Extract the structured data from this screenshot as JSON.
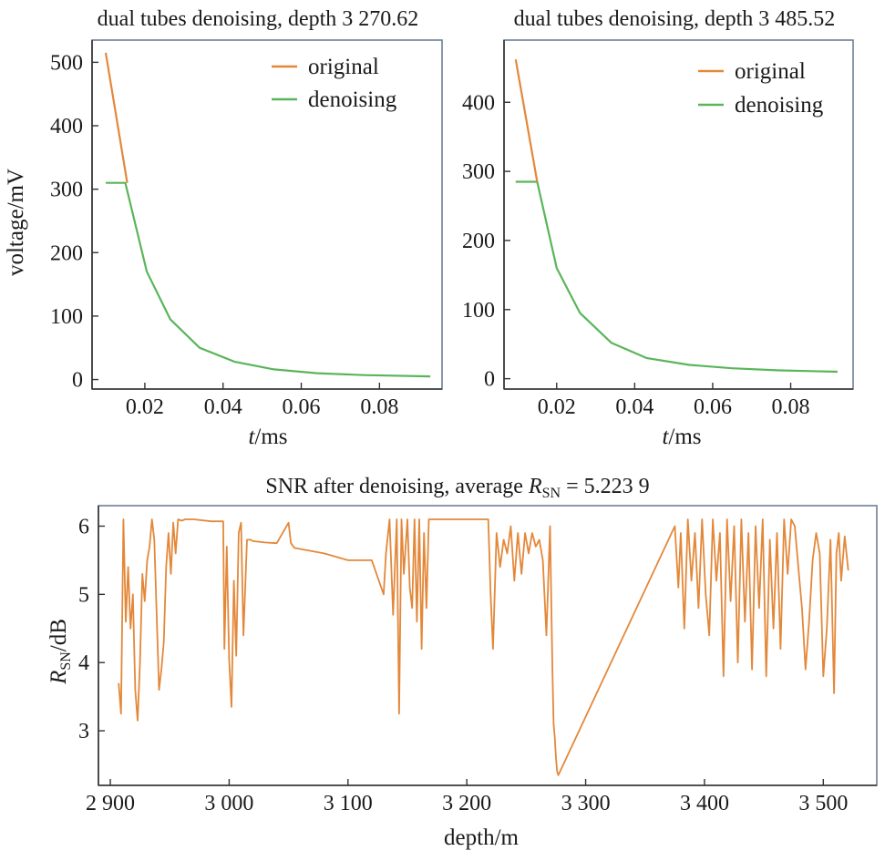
{
  "colors": {
    "original": "#e3883a",
    "denoising": "#5ab55a",
    "frame": "#6d7f96",
    "axis": "#333333"
  },
  "chart_data": [
    {
      "type": "line",
      "title": "dual tubes denoising, depth 3 270.62",
      "xlabel_italic": "t",
      "xlabel_rest": "/ms",
      "ylabel": "voltage/mV",
      "xlim": [
        0.0065,
        0.096
      ],
      "ylim": [
        -15,
        535
      ],
      "xticks": [
        0.02,
        0.04,
        0.06,
        0.08
      ],
      "xtick_labels": [
        "0.02",
        "0.04",
        "0.06",
        "0.08"
      ],
      "yticks": [
        0,
        100,
        200,
        300,
        400,
        500
      ],
      "ytick_labels": [
        "0",
        "100",
        "200",
        "300",
        "400",
        "500"
      ],
      "legend": [
        "original",
        "denoising"
      ],
      "series": [
        {
          "name": "original",
          "x": [
            0.01,
            0.0155
          ],
          "y": [
            515,
            310
          ]
        },
        {
          "name": "denoising",
          "x": [
            0.01,
            0.015,
            0.0205,
            0.0265,
            0.034,
            0.043,
            0.053,
            0.064,
            0.076,
            0.093
          ],
          "y": [
            310,
            310,
            170,
            95,
            50,
            28,
            16,
            10,
            7,
            5
          ]
        }
      ]
    },
    {
      "type": "line",
      "title": "dual tubes denoising, depth 3 485.52",
      "xlabel_italic": "t",
      "xlabel_rest": "/ms",
      "ylabel": "",
      "xlim": [
        0.0065,
        0.096
      ],
      "ylim": [
        -15,
        490
      ],
      "xticks": [
        0.02,
        0.04,
        0.06,
        0.08
      ],
      "xtick_labels": [
        "0.02",
        "0.04",
        "0.06",
        "0.08"
      ],
      "yticks": [
        0,
        100,
        200,
        300,
        400
      ],
      "ytick_labels": [
        "0",
        "100",
        "200",
        "300",
        "400"
      ],
      "legend": [
        "original",
        "denoising"
      ],
      "series": [
        {
          "name": "original",
          "x": [
            0.0095,
            0.015
          ],
          "y": [
            462,
            285
          ]
        },
        {
          "name": "denoising",
          "x": [
            0.0095,
            0.015,
            0.02,
            0.026,
            0.034,
            0.043,
            0.054,
            0.065,
            0.077,
            0.092
          ],
          "y": [
            285,
            285,
            160,
            95,
            52,
            30,
            20,
            15,
            12,
            10
          ]
        }
      ]
    },
    {
      "type": "line",
      "title_prefix": "SNR after denoising, average ",
      "title_var": "R",
      "title_sub": "SN",
      "title_suffix": " = 5.223 9",
      "xlabel": "depth/m",
      "ylabel_var": "R",
      "ylabel_sub": "SN",
      "ylabel_rest": "/dB",
      "xlim": [
        2890,
        3545
      ],
      "ylim": [
        2.2,
        6.3
      ],
      "xticks": [
        2900,
        3000,
        3100,
        3200,
        3300,
        3400,
        3500
      ],
      "xtick_labels": [
        "2 900",
        "3 000",
        "3 100",
        "3 200",
        "3 300",
        "3 400",
        "3 500"
      ],
      "yticks": [
        3,
        4,
        5,
        6
      ],
      "ytick_labels": [
        "3",
        "4",
        "5",
        "6"
      ],
      "series": [
        {
          "name": "",
          "x": [
            2907,
            2909,
            2911,
            2913,
            2915,
            2917,
            2919,
            2921,
            2923,
            2925,
            2927,
            2929,
            2931,
            2933,
            2935,
            2937,
            2939,
            2941,
            2943,
            2945,
            2947,
            2949,
            2951,
            2953,
            2955,
            2957,
            2960,
            2963,
            2970,
            2985,
            2995,
            2996,
            2998,
            3000,
            3002,
            3004,
            3006,
            3008,
            3010,
            3012,
            3015,
            3018,
            3020,
            3030,
            3040,
            3050,
            3052,
            3055,
            3080,
            3100,
            3120,
            3128,
            3130,
            3132,
            3135,
            3138,
            3141,
            3143,
            3145,
            3147,
            3150,
            3152,
            3154,
            3156,
            3158,
            3160,
            3162,
            3164,
            3166,
            3168,
            3170,
            3175,
            3185,
            3200,
            3210,
            3218,
            3220,
            3222,
            3225,
            3228,
            3231,
            3234,
            3237,
            3240,
            3243,
            3246,
            3249,
            3252,
            3255,
            3258,
            3261,
            3264,
            3267,
            3270,
            3272,
            3273,
            3274,
            3275,
            3276,
            3277,
            3375,
            3378,
            3380,
            3383,
            3386,
            3389,
            3392,
            3395,
            3398,
            3401,
            3404,
            3407,
            3410,
            3413,
            3416,
            3419,
            3422,
            3425,
            3428,
            3431,
            3434,
            3437,
            3440,
            3443,
            3446,
            3449,
            3452,
            3455,
            3458,
            3461,
            3464,
            3467,
            3470,
            3473,
            3476,
            3479,
            3482,
            3485,
            3488,
            3491,
            3494,
            3497,
            3500,
            3503,
            3506,
            3509,
            3511,
            3513,
            3515,
            3518,
            3521
          ],
          "y": [
            3.7,
            3.25,
            6.1,
            4.6,
            5.4,
            4.5,
            5.0,
            3.6,
            3.15,
            4.0,
            5.3,
            4.9,
            5.5,
            5.7,
            6.1,
            5.8,
            4.7,
            3.6,
            3.9,
            4.3,
            5.4,
            5.9,
            5.3,
            6.05,
            5.6,
            6.1,
            6.08,
            6.1,
            6.1,
            6.07,
            6.07,
            4.2,
            5.7,
            4.05,
            3.35,
            5.2,
            4.1,
            5.9,
            6.05,
            4.4,
            5.8,
            5.8,
            5.78,
            5.76,
            5.75,
            6.05,
            5.75,
            5.68,
            5.6,
            5.5,
            5.5,
            5.1,
            5.0,
            5.6,
            6.1,
            4.7,
            6.1,
            3.25,
            6.1,
            5.3,
            6.1,
            5.1,
            4.8,
            6.1,
            4.6,
            6.1,
            4.2,
            5.9,
            4.8,
            6.1,
            6.1,
            6.1,
            6.1,
            6.1,
            6.1,
            6.1,
            5.0,
            4.2,
            5.9,
            5.4,
            5.8,
            5.6,
            6.0,
            5.2,
            5.9,
            5.3,
            5.9,
            5.6,
            5.9,
            5.7,
            5.8,
            5.5,
            4.4,
            6.0,
            3.9,
            3.1,
            2.9,
            2.6,
            2.4,
            2.35,
            6.0,
            5.1,
            5.9,
            4.5,
            6.1,
            5.2,
            5.9,
            4.8,
            6.1,
            5.0,
            4.4,
            6.1,
            5.2,
            5.9,
            3.8,
            6.1,
            4.9,
            6.0,
            4.0,
            6.1,
            4.6,
            5.9,
            3.9,
            6.0,
            4.8,
            6.1,
            3.8,
            5.8,
            4.5,
            5.9,
            4.2,
            6.1,
            5.3,
            6.1,
            6.0,
            5.4,
            4.8,
            3.9,
            4.6,
            5.5,
            5.9,
            5.6,
            3.8,
            4.5,
            5.8,
            3.55,
            5.6,
            5.9,
            5.2,
            5.85,
            5.35
          ]
        }
      ]
    }
  ]
}
